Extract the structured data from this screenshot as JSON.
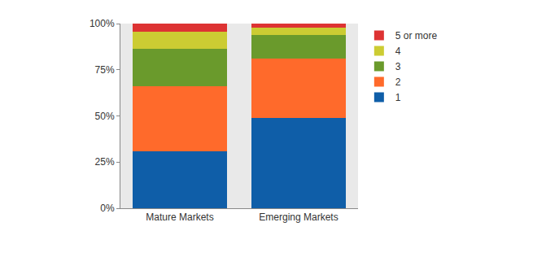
{
  "chart_data": {
    "type": "bar",
    "stacked": true,
    "categories": [
      "Mature Markets",
      "Emerging Markets"
    ],
    "series": [
      {
        "name": "1",
        "color": "#0f5ea8",
        "values": [
          31,
          49
        ]
      },
      {
        "name": "2",
        "color": "#ff6a2b",
        "values": [
          35,
          32
        ]
      },
      {
        "name": "3",
        "color": "#6a9a2c",
        "values": [
          20.5,
          13
        ]
      },
      {
        "name": "4",
        "color": "#cccc33",
        "values": [
          9,
          4
        ]
      },
      {
        "name": "5 or more",
        "color": "#dd3333",
        "values": [
          4.5,
          2
        ]
      }
    ],
    "ylim": [
      0,
      100
    ],
    "yticks": [
      {
        "value": 0,
        "label": "0%"
      },
      {
        "value": 25,
        "label": "25%"
      },
      {
        "value": 50,
        "label": "50%"
      },
      {
        "value": 75,
        "label": "75%"
      },
      {
        "value": 100,
        "label": "100%"
      }
    ],
    "grid": false,
    "legend": "right"
  }
}
